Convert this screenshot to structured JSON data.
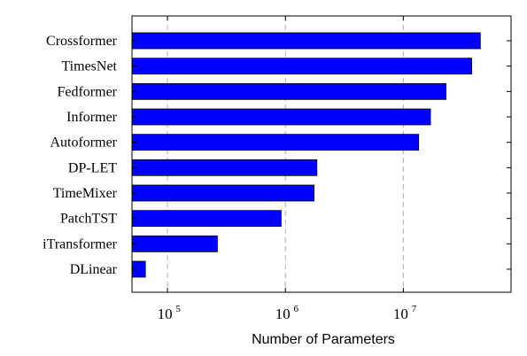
{
  "chart_data": {
    "type": "bar",
    "orientation": "horizontal",
    "title": "",
    "xlabel": "Number of Parameters",
    "ylabel": "",
    "x_scale": "log",
    "xlim": [
      50000,
      82000000
    ],
    "grid": "vertical dashed at major ticks",
    "categories": [
      "Crossformer",
      "TimesNet",
      "Fedformer",
      "Informer",
      "Autoformer",
      "DP-LET",
      "TimeMixer",
      "PatchTST",
      "iTransformer",
      "DLinear"
    ],
    "values": [
      45000000,
      38000000,
      23000000,
      17000000,
      13500000,
      1850000,
      1750000,
      920000,
      265000,
      65000
    ],
    "x_ticks": [
      {
        "base": "10",
        "exp": "5",
        "value": 100000
      },
      {
        "base": "10",
        "exp": "6",
        "value": 1000000
      },
      {
        "base": "10",
        "exp": "7",
        "value": 10000000
      }
    ],
    "bar_color": "#0000ff",
    "bar_edge_color": "#000000"
  }
}
